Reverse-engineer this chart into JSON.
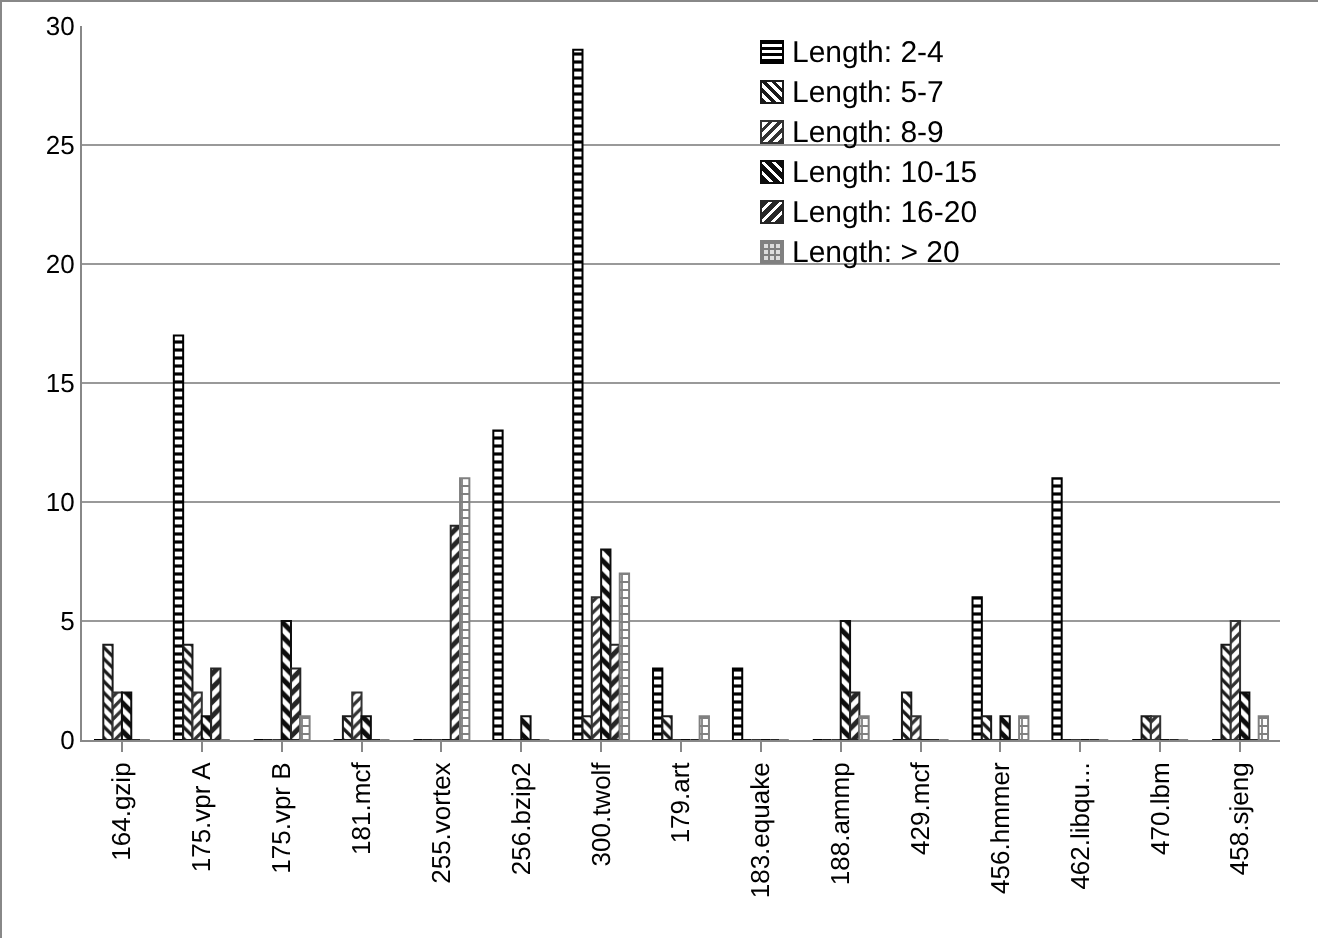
{
  "chart_data": {
    "type": "bar",
    "categories": [
      "164.gzip",
      "175.vpr A",
      "175.vpr B",
      "181.mcf",
      "255.vortex",
      "256.bzip2",
      "300.twolf",
      "179.art",
      "183.equake",
      "188.ammp",
      "429.mcf",
      "456.hmmer",
      "462.libqu...",
      "470.lbm",
      "458.sjeng"
    ],
    "series": [
      {
        "name": "Length: 2-4",
        "color": "#000000",
        "values": [
          0,
          17,
          0,
          0,
          0,
          13,
          29,
          3,
          3,
          0,
          0,
          6,
          11,
          0,
          0
        ]
      },
      {
        "name": "Length: 5-7",
        "color": "#1a1a1a",
        "values": [
          4,
          4,
          0,
          1,
          0,
          0,
          1,
          1,
          0,
          0,
          2,
          1,
          0,
          1,
          4
        ]
      },
      {
        "name": "Length: 8-9",
        "color": "#333333",
        "values": [
          2,
          2,
          0,
          2,
          0,
          0,
          6,
          0,
          0,
          0,
          1,
          0,
          0,
          1,
          5
        ]
      },
      {
        "name": "Length: 10-15",
        "color": "#0d0d0d",
        "values": [
          2,
          1,
          5,
          1,
          0,
          1,
          8,
          0,
          0,
          5,
          0,
          1,
          0,
          0,
          2
        ]
      },
      {
        "name": "Length: 16-20",
        "color": "#262626",
        "values": [
          0,
          3,
          3,
          0,
          9,
          0,
          4,
          0,
          0,
          2,
          0,
          0,
          0,
          0,
          0
        ]
      },
      {
        "name": "Length: > 20",
        "color": "#808080",
        "values": [
          0,
          0,
          1,
          0,
          11,
          0,
          7,
          1,
          0,
          1,
          0,
          1,
          0,
          0,
          1
        ]
      }
    ],
    "ylim": [
      0,
      30
    ],
    "yticks": [
      0,
      5,
      10,
      15,
      20,
      25,
      30
    ],
    "grid": "y",
    "legend": "top right"
  }
}
